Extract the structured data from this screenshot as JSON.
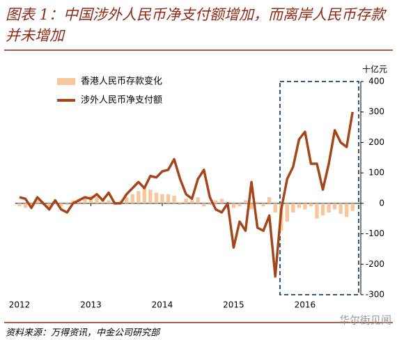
{
  "chart_data": {
    "type": "bar-line",
    "title": "图表 1：中国涉外人民币净支付额增加，而离岸人民币存款并未增加",
    "y_unit": "十亿元",
    "source": "资料来源：万得资讯，中金公司研究部",
    "watermark": "华尔街见闻",
    "categories": [
      "2012",
      null,
      null,
      null,
      null,
      null,
      null,
      null,
      null,
      null,
      null,
      null,
      "2013",
      null,
      null,
      null,
      null,
      null,
      null,
      null,
      null,
      null,
      null,
      null,
      "2014",
      null,
      null,
      null,
      null,
      null,
      null,
      null,
      null,
      null,
      null,
      null,
      "2015",
      null,
      null,
      null,
      null,
      null,
      null,
      null,
      null,
      null,
      null,
      null,
      "2016",
      null,
      null,
      null,
      null,
      null,
      null,
      null,
      null
    ],
    "series": [
      {
        "name": "香港人民币存款变化",
        "type": "bar",
        "color": "#f7c79b",
        "values": [
          -10,
          -15,
          -5,
          10,
          -5,
          -10,
          5,
          -10,
          -5,
          10,
          15,
          20,
          25,
          20,
          15,
          10,
          -5,
          10,
          20,
          30,
          40,
          50,
          45,
          35,
          30,
          30,
          25,
          -5,
          15,
          10,
          20,
          -10,
          -5,
          10,
          15,
          5,
          -15,
          -10,
          10,
          -20,
          5,
          -10,
          20,
          -30,
          -90,
          -60,
          -30,
          -15,
          -20,
          -10,
          -50,
          -40,
          -30,
          -20,
          -35,
          -45,
          -25
        ]
      },
      {
        "name": "涉外人民币净支付额",
        "type": "line",
        "color": "#a4461c",
        "values": [
          20,
          15,
          -15,
          20,
          0,
          -20,
          10,
          -20,
          -30,
          0,
          10,
          20,
          15,
          30,
          10,
          35,
          0,
          0,
          30,
          50,
          70,
          50,
          90,
          85,
          105,
          110,
          145,
          80,
          30,
          15,
          80,
          110,
          20,
          -20,
          -30,
          0,
          -145,
          -60,
          -90,
          70,
          -80,
          -90,
          -40,
          -240,
          -20,
          80,
          120,
          210,
          235,
          130,
          130,
          45,
          130,
          240,
          200,
          185,
          300
        ]
      }
    ],
    "ylim": [
      -300,
      400
    ],
    "yticks": [
      -300,
      -200,
      -100,
      0,
      100,
      200,
      300,
      400
    ]
  }
}
